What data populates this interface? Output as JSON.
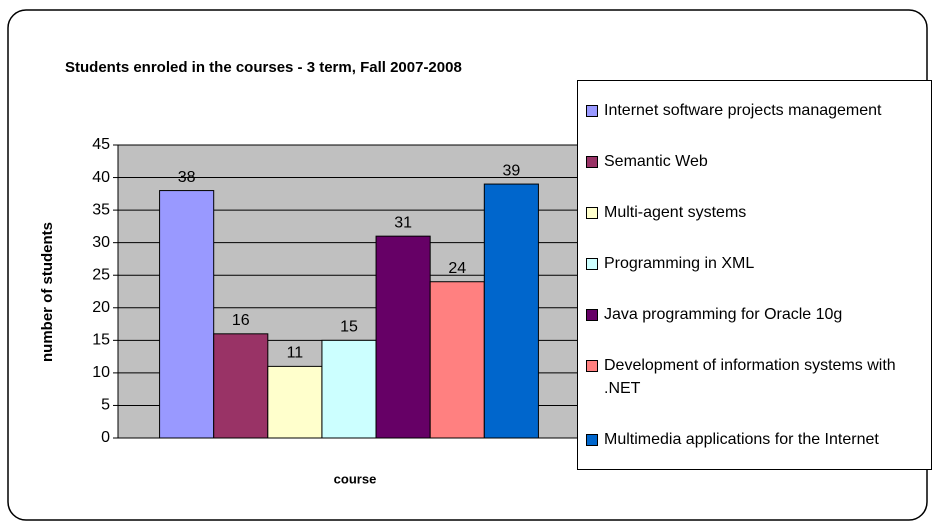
{
  "chart_data": {
    "type": "bar",
    "title": "Students enroled in the courses - 3 term, Fall 2007-2008",
    "x_label": "course",
    "y_label": "number of students",
    "categories": [
      null
    ],
    "series": [
      {
        "name": "Internet software projects management",
        "color": "#9999ff",
        "values": [
          38
        ]
      },
      {
        "name": " Semantic Web",
        "color": "#993366",
        "values": [
          16
        ]
      },
      {
        "name": "Multi-agent systems",
        "color": "#ffffcc",
        "values": [
          11
        ]
      },
      {
        "name": "Programming in XML",
        "color": "#ccffff",
        "values": [
          15
        ]
      },
      {
        "name": "Java programming for Oracle 10g",
        "color": "#660066",
        "values": [
          31
        ]
      },
      {
        "name": "Development of information systems with .NET",
        "color": "#ff8080",
        "values": [
          24
        ]
      },
      {
        "name": "Multimedia applications for the Internet",
        "color": "#0066cc",
        "values": [
          39
        ]
      }
    ],
    "ylim": [
      0,
      45
    ],
    "yticks": [
      0,
      5,
      10,
      15,
      20,
      25,
      30,
      35,
      40,
      45
    ],
    "grid": true,
    "legend": "right",
    "plot_background": "#c0c0c0",
    "data_labels": true
  }
}
